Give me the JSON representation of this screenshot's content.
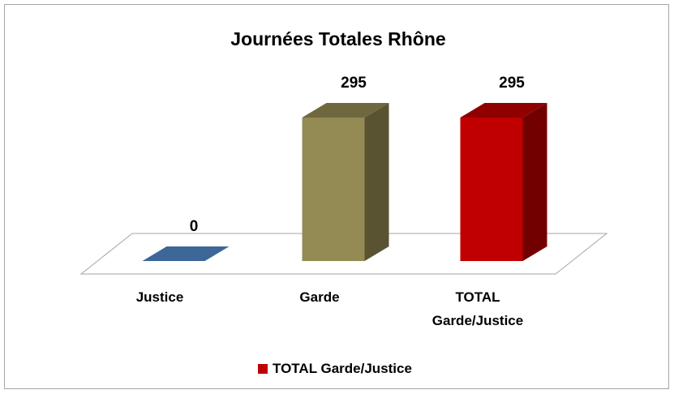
{
  "chart_data": {
    "type": "bar",
    "title": "Journées Totales Rhône",
    "categories": [
      "Justice",
      "Garde",
      "TOTAL Garde/Justice"
    ],
    "series": [
      {
        "name": "TOTAL Garde/Justice",
        "color": "#c00000",
        "values": [
          0,
          295,
          295
        ]
      }
    ],
    "bar_colors": [
      "#3d6799",
      "#948a54",
      "#c00000"
    ],
    "ylim": [
      0,
      300
    ],
    "legend": "bottom",
    "grid": false
  }
}
